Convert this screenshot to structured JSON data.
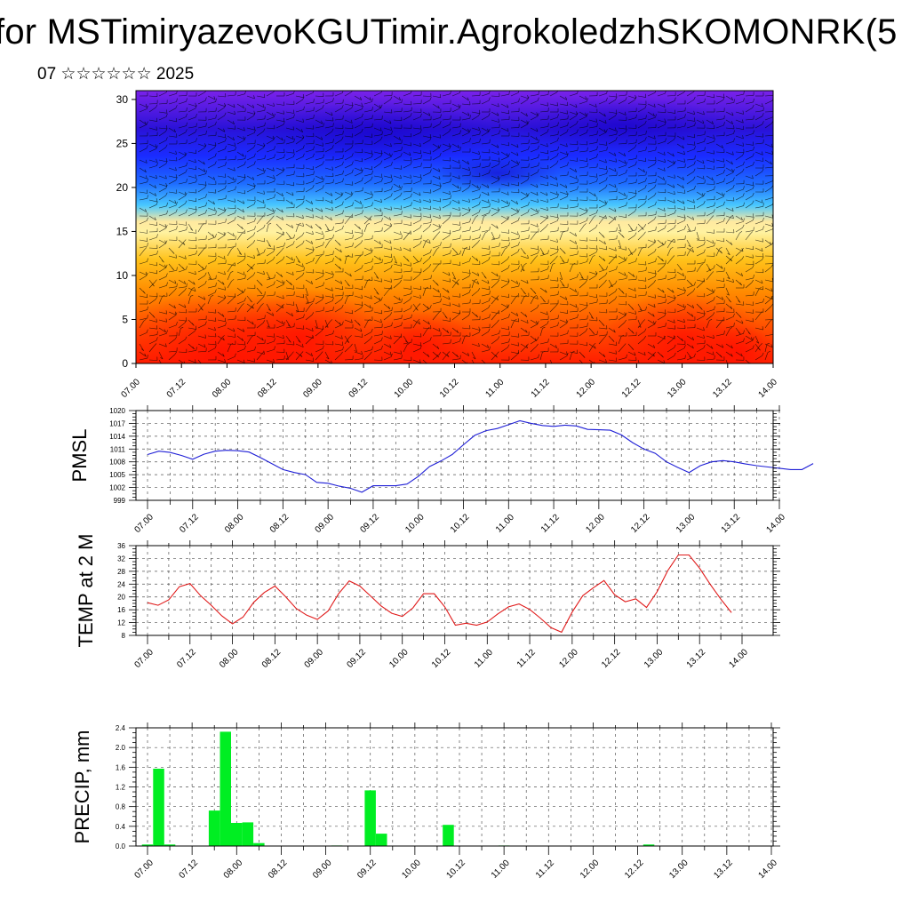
{
  "header": {
    "title": "for MSTimiryazevoKGUTimir.AgrokoledzhSKOMONRK(5",
    "subtitle": "07 ☆☆☆☆☆☆ 2025"
  },
  "colors": {
    "pmsl_line": "#1f1fd6",
    "temp_line": "#e01a1a",
    "precip_bar": "#00ee22",
    "grid": "#555555"
  },
  "chart_data": [
    {
      "type": "heatmap",
      "name": "vertical-cross-section",
      "x_ticks": [
        "07.00",
        "07.12",
        "08.00",
        "08.12",
        "09.00",
        "09.12",
        "10.00",
        "10.12",
        "11.00",
        "11.12",
        "12.00",
        "12.12",
        "13.00",
        "13.12",
        "14.00"
      ],
      "y_ticks": [
        "0",
        "5",
        "10",
        "15",
        "20",
        "25",
        "30"
      ],
      "ylim": [
        0,
        31
      ],
      "colorscale": [
        "#ff2200",
        "#ff6a00",
        "#ffb300",
        "#fff5a0",
        "#2bb7ff",
        "#1a3aff",
        "#2a10d0",
        "#7a20e8"
      ],
      "overlay": "wind barbs"
    },
    {
      "type": "line",
      "name": "pmsl",
      "ylabel": "PMSL",
      "ylim": [
        999,
        1020
      ],
      "y_ticks": [
        "999",
        "1002",
        "1005",
        "1008",
        "1011",
        "1014",
        "1017",
        "1020"
      ],
      "x_ticks": [
        "07.00",
        "07.12",
        "08.00",
        "08.12",
        "09.00",
        "09.12",
        "10.00",
        "10.12",
        "11.00",
        "11.12",
        "12.00",
        "12.12",
        "13.00",
        "13.12",
        "14.00"
      ],
      "x_step_hours": 3,
      "values": [
        1009.7,
        1010.5,
        1010.2,
        1009.5,
        1008.6,
        1009.8,
        1010.5,
        1010.7,
        1010.6,
        1010.3,
        1009.0,
        1007.6,
        1006.2,
        1005.5,
        1005.0,
        1003.2,
        1003.0,
        1002.3,
        1001.8,
        1000.9,
        1002.4,
        1002.4,
        1002.4,
        1002.8,
        1004.6,
        1006.9,
        1008.2,
        1009.7,
        1012.0,
        1014.2,
        1015.3,
        1015.8,
        1016.7,
        1017.6,
        1017.0,
        1016.5,
        1016.3,
        1016.6,
        1016.4,
        1015.6,
        1015.5,
        1015.4,
        1014.3,
        1012.5,
        1011.0,
        1010.0,
        1008.0,
        1006.7,
        1005.5,
        1007.1,
        1008.0,
        1008.3,
        1008.0,
        1007.5,
        1007.1,
        1006.8,
        1006.5,
        1006.2,
        1006.2,
        1007.6
      ]
    },
    {
      "type": "line",
      "name": "temp-2m",
      "ylabel": "TEMP at 2 M",
      "ylim": [
        8,
        36
      ],
      "y_ticks": [
        "8",
        "12",
        "16",
        "20",
        "24",
        "28",
        "32",
        "36"
      ],
      "x_ticks": [
        "07.00",
        "07.12",
        "08.00",
        "08.12",
        "09.00",
        "09.12",
        "10.00",
        "10.12",
        "11.00",
        "11.12",
        "12.00",
        "12.12",
        "13.00",
        "13.12",
        "14.00"
      ],
      "x_step_hours": 3,
      "values": [
        18.2,
        17.4,
        19.1,
        23.2,
        24.2,
        20.4,
        17.4,
        14.1,
        11.6,
        13.7,
        18.3,
        21.4,
        23.4,
        20.1,
        16.4,
        14.3,
        13.0,
        15.6,
        21.0,
        25.0,
        23.4,
        20.3,
        17.2,
        14.9,
        13.9,
        16.6,
        21.0,
        21.0,
        16.9,
        11.2,
        11.8,
        11.2,
        12.2,
        14.7,
        16.9,
        17.8,
        16.1,
        13.4,
        10.4,
        9.0,
        15.3,
        20.4,
        22.9,
        25.1,
        20.7,
        18.5,
        19.4,
        16.7,
        21.6,
        28.2,
        33.1,
        33.1,
        29.0,
        23.9,
        19.3,
        15.1
      ]
    },
    {
      "type": "bar",
      "name": "precip",
      "ylabel": "PRECIP, mm",
      "ylim": [
        0,
        2.4
      ],
      "y_ticks": [
        "0.0",
        "0.4",
        "0.8",
        "1.2",
        "1.6",
        "2.0",
        "2.4"
      ],
      "x_ticks": [
        "07.00",
        "07.12",
        "08.00",
        "08.12",
        "09.00",
        "09.12",
        "10.00",
        "10.12",
        "11.00",
        "11.12",
        "12.00",
        "12.12",
        "13.00",
        "13.12",
        "14.00"
      ],
      "x_step_hours": 3,
      "values": [
        0.03,
        1.57,
        0.03,
        0,
        0,
        0,
        0.72,
        2.32,
        0.47,
        0.48,
        0.06,
        0,
        0,
        0,
        0,
        0,
        0,
        0.01,
        0,
        0,
        1.13,
        0.25,
        0,
        0,
        0,
        0,
        0,
        0.43,
        0,
        0,
        0,
        0,
        0.01,
        0,
        0,
        0,
        0,
        0,
        0,
        0,
        0,
        0,
        0,
        0,
        0,
        0.03,
        0,
        0,
        0,
        0,
        0,
        0,
        0,
        0,
        0,
        0
      ]
    }
  ]
}
